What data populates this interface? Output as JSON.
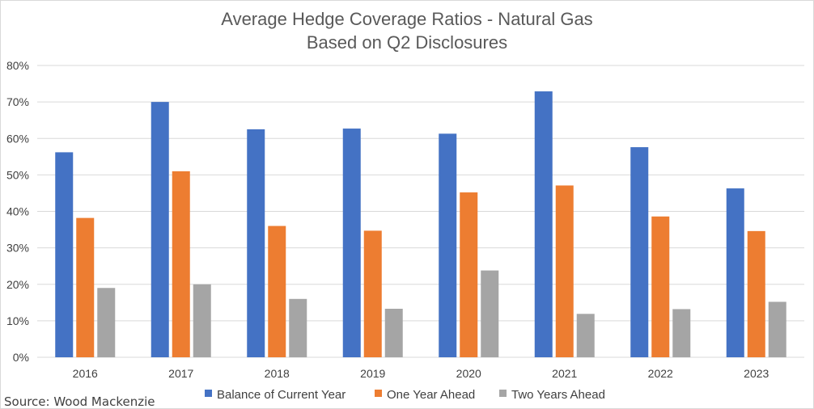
{
  "chart_data": {
    "type": "bar",
    "title": "Average Hedge Coverage Ratios - Natural Gas",
    "subtitle": "Based on Q2 Disclosures",
    "xlabel": "",
    "ylabel": "",
    "categories": [
      "2016",
      "2017",
      "2018",
      "2019",
      "2020",
      "2021",
      "2022",
      "2023"
    ],
    "series": [
      {
        "name": "Balance of Current Year",
        "color": "#4472c4",
        "values": [
          56.2,
          70.0,
          62.5,
          62.7,
          61.3,
          72.9,
          57.6,
          46.3
        ]
      },
      {
        "name": "One Year Ahead",
        "color": "#ed7d31",
        "values": [
          38.2,
          51.0,
          36.0,
          34.7,
          45.2,
          47.1,
          38.6,
          34.6
        ]
      },
      {
        "name": "Two Years Ahead",
        "color": "#a5a5a5",
        "values": [
          19.0,
          20.0,
          16.0,
          13.3,
          23.8,
          11.9,
          13.2,
          15.2
        ]
      }
    ],
    "ylim": [
      0,
      80
    ],
    "yticks": [
      "0%",
      "10%",
      "20%",
      "30%",
      "40%",
      "50%",
      "60%",
      "70%",
      "80%"
    ],
    "grid": true,
    "legend_position": "bottom",
    "source": "Source: Wood Mackenzie"
  }
}
